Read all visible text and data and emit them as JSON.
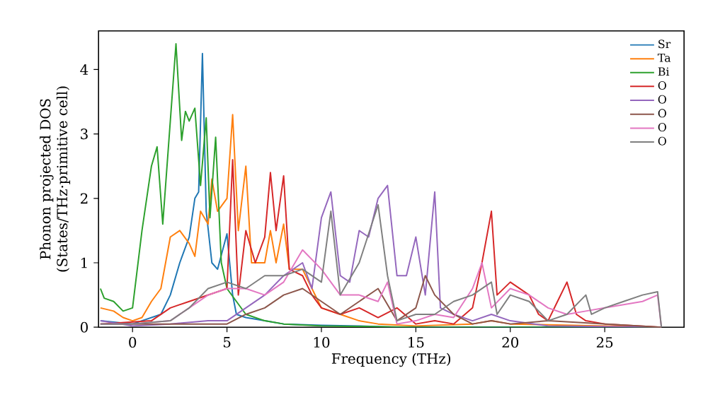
{
  "chart_data": {
    "type": "line",
    "xlabel": "Frequency (THz)",
    "ylabel": "Phonon projected DOS\n(States/THz·primitive cell)",
    "xlim": [
      -1.8,
      29.2
    ],
    "ylim": [
      0,
      4.6
    ],
    "xticks": [
      0,
      5,
      10,
      15,
      20,
      25
    ],
    "yticks": [
      0,
      1,
      2,
      3,
      4
    ],
    "legend": "top right",
    "grid": false,
    "marker": "none",
    "line_style": "solid",
    "series": [
      {
        "name": "Sr",
        "color": "#1f77b4",
        "x": [
          -1.7,
          0,
          1.5,
          2,
          2.5,
          3,
          3.3,
          3.5,
          3.7,
          3.9,
          4.2,
          4.5,
          5,
          5.3,
          5.5,
          6,
          7,
          8,
          10,
          12,
          14,
          28
        ],
        "values": [
          0.1,
          0.05,
          0.2,
          0.5,
          1.0,
          1.4,
          2.0,
          2.1,
          4.25,
          1.8,
          1.0,
          0.9,
          1.45,
          0.5,
          0.2,
          0.15,
          0.1,
          0.05,
          0.03,
          0.02,
          0,
          0
        ]
      },
      {
        "name": "Ta",
        "color": "#ff7f0e",
        "x": [
          -1.7,
          -1,
          -0.5,
          0,
          0.5,
          1,
          1.5,
          2,
          2.5,
          3,
          3.3,
          3.6,
          4,
          4.2,
          4.5,
          5,
          5.3,
          5.6,
          6,
          6.3,
          7,
          7.3,
          7.6,
          8,
          8.3,
          9,
          9.5,
          10,
          11,
          12,
          13,
          15,
          18,
          19,
          20,
          25,
          28
        ],
        "values": [
          0.3,
          0.25,
          0.15,
          0.1,
          0.15,
          0.4,
          0.6,
          1.4,
          1.5,
          1.3,
          1.1,
          1.8,
          1.6,
          2.3,
          1.8,
          2.0,
          3.3,
          1.5,
          2.5,
          1.0,
          1.0,
          1.5,
          1.0,
          1.6,
          0.9,
          0.9,
          0.6,
          0.3,
          0.2,
          0.1,
          0.05,
          0.02,
          0.05,
          0.1,
          0.05,
          0.02,
          0
        ]
      },
      {
        "name": "Bi",
        "color": "#2ca02c",
        "x": [
          -1.7,
          -1.5,
          -1,
          -0.5,
          0,
          0.5,
          1,
          1.3,
          1.6,
          2,
          2.3,
          2.6,
          2.8,
          3,
          3.3,
          3.6,
          3.9,
          4.1,
          4.4,
          4.7,
          5,
          5.5,
          6,
          7,
          8,
          10,
          15,
          28
        ],
        "values": [
          0.6,
          0.45,
          0.4,
          0.25,
          0.3,
          1.5,
          2.5,
          2.8,
          1.6,
          3.2,
          4.4,
          2.9,
          3.35,
          3.2,
          3.4,
          2.2,
          3.25,
          1.7,
          2.95,
          1.0,
          0.6,
          0.4,
          0.2,
          0.1,
          0.05,
          0.02,
          0,
          0
        ]
      },
      {
        "name": "O",
        "color": "#d62728",
        "x": [
          -1.7,
          1,
          2,
          3,
          4,
          5,
          5.3,
          5.6,
          6,
          6.5,
          7,
          7.3,
          7.6,
          8,
          8.3,
          9,
          9.5,
          10,
          11,
          12,
          13,
          14,
          15,
          16,
          17,
          18,
          18.5,
          19,
          19.3,
          20,
          21,
          21.5,
          22,
          22.5,
          23,
          23.5,
          24,
          25,
          28
        ],
        "values": [
          0.05,
          0.1,
          0.3,
          0.4,
          0.5,
          0.6,
          2.6,
          0.5,
          1.5,
          1.0,
          1.4,
          2.4,
          1.5,
          2.35,
          0.9,
          0.8,
          0.5,
          0.3,
          0.2,
          0.3,
          0.15,
          0.3,
          0.05,
          0.1,
          0.05,
          0.3,
          1.0,
          1.8,
          0.5,
          0.7,
          0.5,
          0.2,
          0.1,
          0.4,
          0.7,
          0.2,
          0.1,
          0.05,
          0
        ]
      },
      {
        "name": "O",
        "color": "#9467bd",
        "x": [
          -1.7,
          0,
          2,
          4,
          5,
          6,
          7,
          8,
          9,
          9.5,
          10,
          10.5,
          11,
          11.5,
          12,
          12.5,
          13,
          13.5,
          14,
          14.5,
          15,
          15.5,
          16,
          16.3,
          17,
          18,
          19,
          20,
          22,
          28
        ],
        "values": [
          0.1,
          0.02,
          0.05,
          0.1,
          0.1,
          0.3,
          0.5,
          0.8,
          1.0,
          0.6,
          1.7,
          2.1,
          0.8,
          0.7,
          1.5,
          1.4,
          2.0,
          2.2,
          0.8,
          0.8,
          1.4,
          0.5,
          2.1,
          0.3,
          0.2,
          0.1,
          0.2,
          0.1,
          0.02,
          0
        ]
      },
      {
        "name": "O",
        "color": "#8c564b",
        "x": [
          -1.7,
          5,
          6,
          7,
          8,
          9,
          10,
          11,
          12,
          13,
          14,
          15,
          15.5,
          16,
          17,
          18,
          19,
          20,
          22,
          25,
          28
        ],
        "values": [
          0.05,
          0.05,
          0.2,
          0.3,
          0.5,
          0.6,
          0.4,
          0.2,
          0.4,
          0.6,
          0.1,
          0.3,
          0.8,
          0.5,
          0.2,
          0.05,
          0.1,
          0.05,
          0.1,
          0.05,
          0
        ]
      },
      {
        "name": "O",
        "color": "#e377c2",
        "x": [
          -1.7,
          0,
          2,
          3,
          4,
          5,
          6,
          7,
          8,
          9,
          10,
          11,
          12,
          13,
          13.5,
          14,
          15,
          16,
          17,
          18,
          18.5,
          19,
          20,
          21,
          22,
          23,
          24,
          25,
          27,
          27.8,
          28
        ],
        "values": [
          0.05,
          0.05,
          0.1,
          0.3,
          0.5,
          0.6,
          0.6,
          0.5,
          0.7,
          1.2,
          0.9,
          0.5,
          0.5,
          0.4,
          0.7,
          0.05,
          0.1,
          0.2,
          0.15,
          0.6,
          1.0,
          0.3,
          0.6,
          0.5,
          0.3,
          0.2,
          0.25,
          0.3,
          0.4,
          0.5,
          0
        ]
      },
      {
        "name": "O",
        "color": "#7f7f7f",
        "x": [
          -1.7,
          0,
          2,
          3,
          4,
          5,
          6,
          7,
          8,
          9,
          10,
          10.5,
          11,
          12,
          13,
          13.5,
          14,
          15,
          16,
          17,
          18,
          19,
          19.3,
          20,
          21,
          22,
          23,
          24,
          24.3,
          25,
          26,
          27,
          27.8,
          28
        ],
        "values": [
          0.05,
          0.05,
          0.1,
          0.3,
          0.6,
          0.7,
          0.6,
          0.8,
          0.8,
          0.9,
          0.7,
          1.8,
          0.5,
          1.0,
          1.9,
          0.8,
          0.1,
          0.2,
          0.2,
          0.4,
          0.5,
          0.7,
          0.2,
          0.5,
          0.4,
          0.1,
          0.2,
          0.5,
          0.2,
          0.3,
          0.4,
          0.5,
          0.55,
          0
        ]
      }
    ]
  }
}
